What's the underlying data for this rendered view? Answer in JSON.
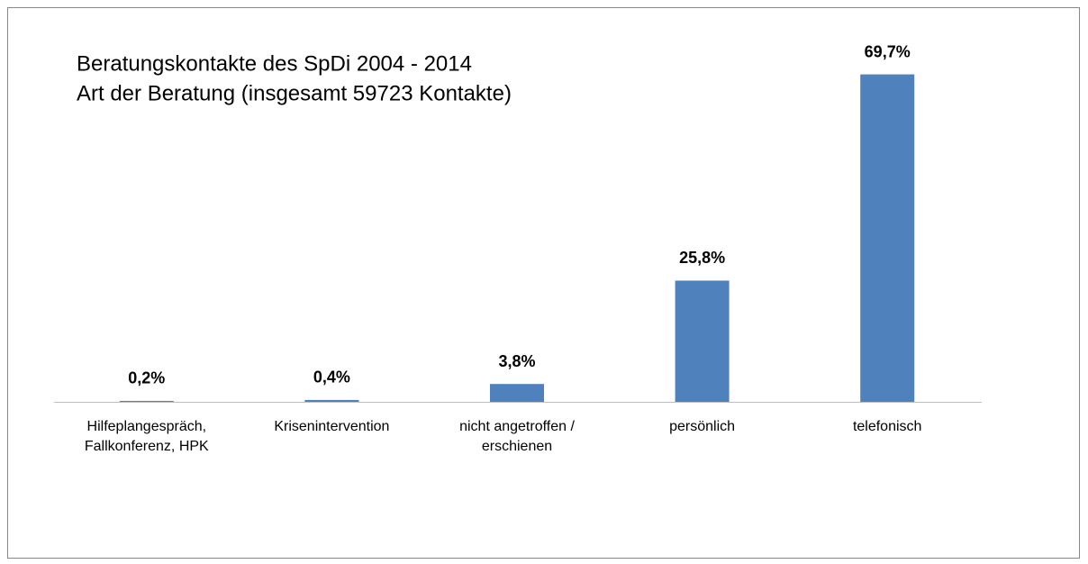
{
  "chart_data": {
    "type": "bar",
    "title": "Beratungskontakte des SpDi 2004 - 2014",
    "subtitle": "Art der Beratung (insgesamt 59723 Kontakte)",
    "categories": [
      "Hilfeplangespräch, Fallkonferenz, HPK",
      "Krisenintervention",
      "nicht angetroffen / erschienen",
      "persönlich",
      "telefonisch"
    ],
    "values": [
      0.2,
      0.4,
      3.8,
      25.8,
      69.7
    ],
    "value_labels": [
      "0,2%",
      "0,4%",
      "3,8%",
      "25,8%",
      "69,7%"
    ],
    "color": "#4f81bd",
    "ylim": [
      0,
      70
    ]
  }
}
